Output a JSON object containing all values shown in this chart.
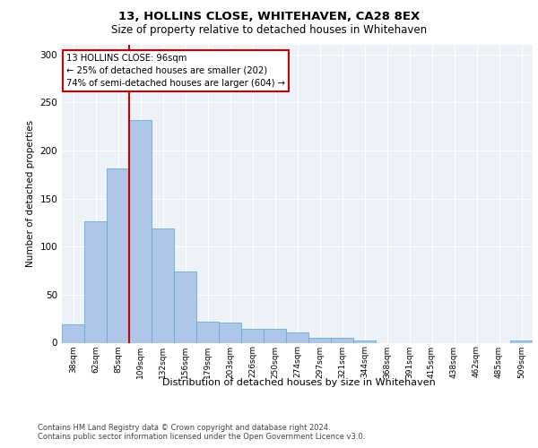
{
  "title1": "13, HOLLINS CLOSE, WHITEHAVEN, CA28 8EX",
  "title2": "Size of property relative to detached houses in Whitehaven",
  "xlabel": "Distribution of detached houses by size in Whitehaven",
  "ylabel": "Number of detached properties",
  "footer1": "Contains HM Land Registry data © Crown copyright and database right 2024.",
  "footer2": "Contains public sector information licensed under the Open Government Licence v3.0.",
  "annotation_line1": "13 HOLLINS CLOSE: 96sqm",
  "annotation_line2": "← 25% of detached houses are smaller (202)",
  "annotation_line3": "74% of semi-detached houses are larger (604) →",
  "bar_color": "#aec6e8",
  "bar_edge_color": "#6aaad4",
  "vline_color": "#cc0000",
  "annotation_box_color": "#cc0000",
  "categories": [
    "38sqm",
    "62sqm",
    "85sqm",
    "109sqm",
    "132sqm",
    "156sqm",
    "179sqm",
    "203sqm",
    "226sqm",
    "250sqm",
    "274sqm",
    "297sqm",
    "321sqm",
    "344sqm",
    "368sqm",
    "391sqm",
    "415sqm",
    "438sqm",
    "462sqm",
    "485sqm",
    "509sqm"
  ],
  "values": [
    19,
    126,
    181,
    232,
    119,
    74,
    22,
    21,
    14,
    14,
    11,
    5,
    5,
    2,
    0,
    0,
    0,
    0,
    0,
    0,
    2
  ],
  "vline_x": 2.5,
  "ylim": [
    0,
    310
  ],
  "yticks": [
    0,
    50,
    100,
    150,
    200,
    250,
    300
  ],
  "background_color": "#edf2f9",
  "grid_color": "#ffffff"
}
